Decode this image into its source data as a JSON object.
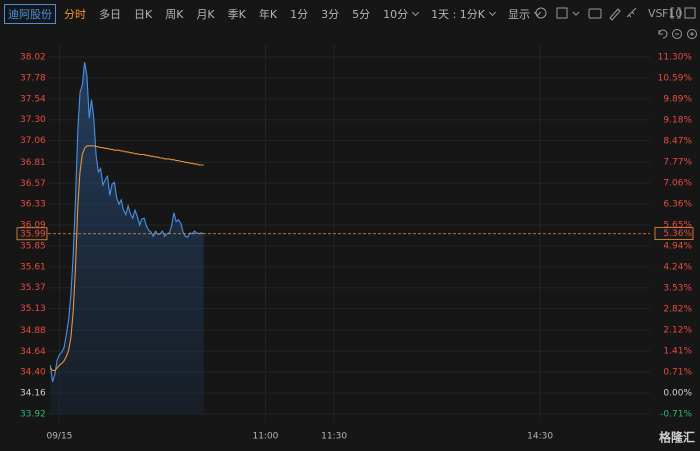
{
  "toolbar": {
    "stock": "迪阿股份",
    "periods": [
      "分时",
      "多日",
      "日K",
      "周K",
      "月K",
      "季K",
      "年K",
      "1分",
      "3分",
      "5分",
      "10分"
    ],
    "interval": "1天 : 1分K",
    "display": "显示",
    "vs": "VS",
    "f10": "F10"
  },
  "watermark": "格隆汇",
  "chart_data": {
    "type": "line",
    "x": [
      -4,
      -3,
      -2,
      -1,
      0,
      1,
      2,
      3,
      4,
      5,
      6,
      7,
      8,
      9,
      10,
      11,
      12,
      13,
      14,
      15,
      16,
      17,
      18,
      19,
      20,
      21,
      22,
      23,
      24,
      25,
      26,
      27,
      28,
      29,
      30,
      31,
      32,
      33,
      34,
      35,
      36,
      37,
      38,
      39,
      40,
      41,
      42,
      43,
      44,
      45,
      46,
      47,
      48,
      49,
      50,
      51,
      52,
      53,
      54,
      55,
      56,
      57,
      58,
      59,
      60,
      61,
      62,
      63
    ],
    "series": [
      {
        "color": "#4a90e2",
        "area": true,
        "values": [
          34.48,
          34.29,
          34.38,
          34.54,
          34.6,
          34.63,
          34.68,
          34.83,
          35.0,
          35.29,
          35.75,
          36.38,
          37.18,
          37.61,
          37.7,
          37.96,
          37.81,
          37.32,
          37.53,
          37.32,
          36.89,
          36.7,
          36.74,
          36.55,
          36.61,
          36.65,
          36.43,
          36.56,
          36.58,
          36.4,
          36.33,
          36.38,
          36.26,
          36.21,
          36.31,
          36.22,
          36.17,
          36.26,
          36.19,
          36.09,
          36.16,
          36.17,
          36.08,
          36.03,
          36.01,
          35.96,
          36.02,
          35.98,
          35.99,
          36.02,
          35.96,
          35.99,
          36.0,
          36.08,
          36.23,
          36.13,
          36.15,
          36.11,
          36.01,
          35.96,
          35.95,
          36.0,
          35.99,
          36.02,
          36.0,
          35.99,
          36.0,
          35.99
        ]
      },
      {
        "color": "#e8923a",
        "area": false,
        "values": [
          34.45,
          34.42,
          34.42,
          34.45,
          34.48,
          34.5,
          34.53,
          34.58,
          34.65,
          34.8,
          35.1,
          35.6,
          36.3,
          36.7,
          36.9,
          36.97,
          37.0,
          37.0,
          37.0,
          37.0,
          36.99,
          36.99,
          36.98,
          36.98,
          36.97,
          36.97,
          36.96,
          36.96,
          36.95,
          36.95,
          36.95,
          36.94,
          36.94,
          36.93,
          36.93,
          36.92,
          36.92,
          36.91,
          36.91,
          36.9,
          36.9,
          36.9,
          36.89,
          36.89,
          36.88,
          36.88,
          36.87,
          36.87,
          36.86,
          36.86,
          36.85,
          36.85,
          36.85,
          36.84,
          36.84,
          36.83,
          36.83,
          36.82,
          36.82,
          36.81,
          36.81,
          36.8,
          36.8,
          36.79,
          36.79,
          36.78,
          36.78,
          36.78
        ]
      }
    ],
    "xlim": [
      -5,
      258
    ],
    "xticks": [
      {
        "value": 0,
        "label": "09/15"
      },
      {
        "value": 90,
        "label": "11:00"
      },
      {
        "value": 120,
        "label": "11:30"
      },
      {
        "value": 210,
        "label": "14:30"
      }
    ],
    "ylim": [
      33.92,
      38.02
    ],
    "yticks": [
      38.02,
      37.78,
      37.54,
      {
        "value": 37.3,
        "label": "37.30"
      },
      37.06,
      36.81,
      36.57,
      36.33,
      36.09,
      35.85,
      35.61,
      35.37,
      35.13,
      34.88,
      34.64,
      {
        "value": 34.4,
        "label": "34.40"
      },
      34.16,
      33.92
    ],
    "y2lim": [
      -0.71,
      11.3
    ],
    "y2ticks": [
      {
        "value": 11.3,
        "label": "11.30%"
      },
      {
        "value": 10.59,
        "label": "10.59%"
      },
      {
        "value": 9.89,
        "label": "9.89%"
      },
      {
        "value": 9.18,
        "label": "9.18%"
      },
      {
        "value": 8.47,
        "label": "8.47%"
      },
      {
        "value": 7.77,
        "label": "7.77%"
      },
      {
        "value": 7.06,
        "label": "7.06%"
      },
      {
        "value": 6.36,
        "label": "6.36%"
      },
      {
        "value": 5.65,
        "label": "5.65%"
      },
      {
        "value": 4.94,
        "label": "4.94%"
      },
      {
        "value": 4.24,
        "label": "4.24%"
      },
      {
        "value": 3.53,
        "label": "3.53%"
      },
      {
        "value": 2.82,
        "label": "2.82%"
      },
      {
        "value": 2.12,
        "label": "2.12%"
      },
      {
        "value": 1.41,
        "label": "1.41%"
      },
      {
        "value": 0.71,
        "label": "0.71%"
      },
      {
        "value": 0.0,
        "label": "0.00%"
      },
      {
        "value": -0.71,
        "label": "-0.71%"
      }
    ],
    "last": {
      "value": 35.99,
      "pct": {
        "value": 5.36,
        "label": "5.36%"
      },
      "color": "#e8923a"
    },
    "grid": true
  }
}
